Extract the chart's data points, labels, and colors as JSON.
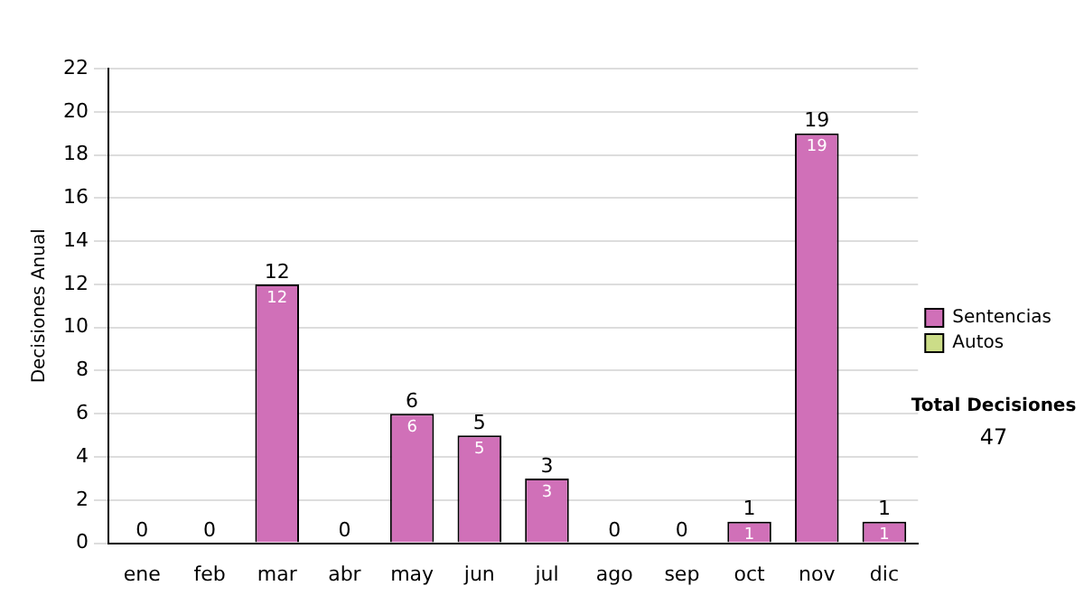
{
  "chart_data": {
    "type": "bar",
    "stacked": true,
    "ylabel": "Decisiones Anual",
    "categories": [
      "ene",
      "feb",
      "mar",
      "abr",
      "may",
      "jun",
      "jul",
      "ago",
      "sep",
      "oct",
      "nov",
      "dic"
    ],
    "series": [
      {
        "name": "Sentencias",
        "color": "#d070b8",
        "values": [
          0,
          0,
          12,
          0,
          6,
          5,
          3,
          0,
          0,
          1,
          19,
          1
        ],
        "value_labels": [
          null,
          null,
          "12",
          null,
          "6",
          "5",
          "3",
          null,
          null,
          "1",
          "19",
          "1"
        ]
      },
      {
        "name": "Autos",
        "color": "#ccdd88",
        "values": [
          0,
          0,
          0,
          0,
          0,
          0,
          0,
          0,
          0,
          0,
          0,
          0
        ]
      }
    ],
    "totals": [
      "0",
      "0",
      "12",
      "0",
      "6",
      "5",
      "3",
      "0",
      "0",
      "1",
      "19",
      "1"
    ],
    "ylim": [
      0,
      22
    ],
    "yticks": [
      0,
      2,
      4,
      6,
      8,
      10,
      12,
      14,
      16,
      18,
      20,
      22
    ],
    "grid": "y",
    "legend": "right",
    "annotations": [
      "Total Decisiones",
      "47"
    ]
  }
}
